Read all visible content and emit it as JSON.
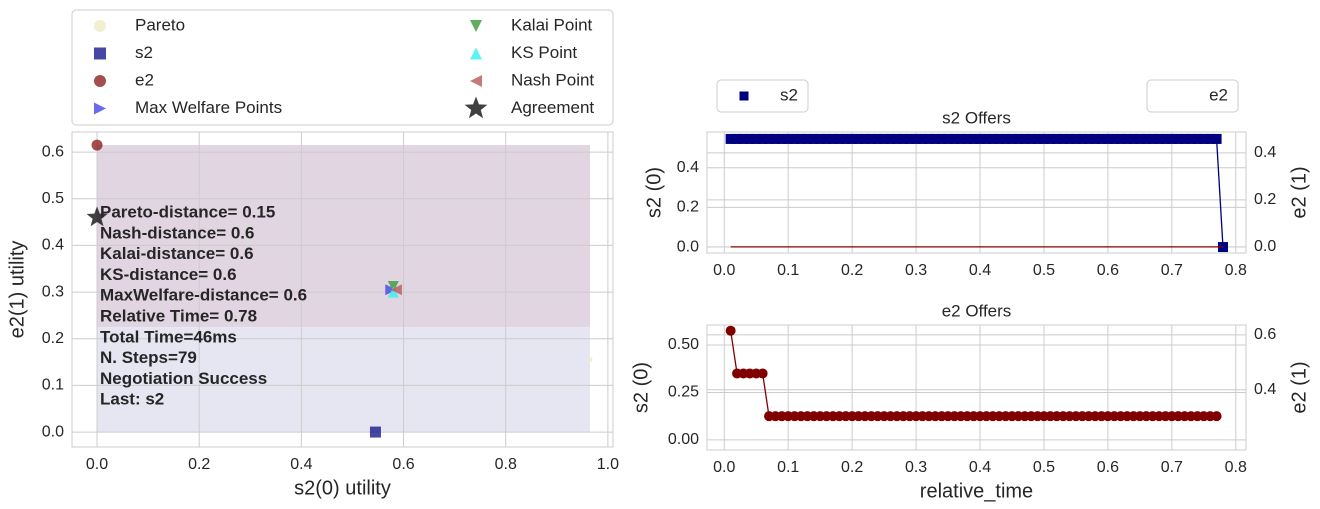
{
  "chart_data": [
    {
      "type": "scatter",
      "xlabel": "s2(0) utility",
      "ylabel": "e2(1) utility",
      "xlim": [
        -0.049,
        1.01
      ],
      "ylim": [
        -0.032,
        0.643
      ],
      "xticks": [
        {
          "value": 0,
          "label": "0.0"
        },
        0.2,
        0.4,
        0.6,
        0.8,
        {
          "value": 1,
          "label": "1.0"
        }
      ],
      "yticks": [
        {
          "value": 0,
          "label": "0.0"
        },
        0.1,
        0.2,
        0.3,
        0.4,
        0.5,
        0.6
      ],
      "grid": true,
      "regions": [
        {
          "x": [
            0,
            0.965
          ],
          "y": [
            0.225,
            0.615
          ],
          "color": "#e1d5e1"
        },
        {
          "x": [
            0,
            0.965
          ],
          "y": [
            0,
            0.225
          ],
          "color": "#e6e6f2"
        }
      ],
      "series": [
        {
          "name": "Pareto",
          "color": "#efeac4",
          "marker": "circle",
          "x": [
            0.965
          ],
          "values": [
            0.155
          ]
        },
        {
          "name": "s2",
          "color": "#1a1a8c",
          "marker": "square",
          "x": [
            0.545
          ],
          "values": [
            0.0
          ]
        },
        {
          "name": "e2",
          "color": "#8b2222",
          "marker": "circle",
          "x": [
            0.0
          ],
          "values": [
            0.615
          ]
        },
        {
          "name": "Max Welfare Points",
          "color": "#4545e6",
          "marker": "tri-right",
          "x": [
            0.575
          ],
          "values": [
            0.305
          ]
        },
        {
          "name": "Kalai Point",
          "color": "#3a9a3a",
          "marker": "tri-down",
          "x": [
            0.58
          ],
          "values": [
            0.312
          ]
        },
        {
          "name": "KS Point",
          "color": "#33f0f0",
          "marker": "tri-up",
          "x": [
            0.58
          ],
          "values": [
            0.3
          ]
        },
        {
          "name": "Nash Point",
          "color": "#b85a5a",
          "marker": "tri-left",
          "x": [
            0.586
          ],
          "values": [
            0.305
          ]
        },
        {
          "name": "Agreement",
          "color": "#111111",
          "marker": "star",
          "x": [
            0.0
          ],
          "values": [
            0.46
          ]
        }
      ],
      "annotation": [
        "Pareto-distance= 0.15",
        "Nash-distance=  0.6",
        "Kalai-distance=  0.6",
        "KS-distance=  0.6",
        "MaxWelfare-distance=  0.6",
        "Relative Time= 0.78",
        "Total Time=46ms",
        "N. Steps=79",
        "Negotiation Success",
        "Last: s2"
      ]
    },
    {
      "type": "line",
      "title": "s2 Offers",
      "ylabel": "s2 (0)",
      "y2label": "e2 (1)",
      "xlim": [
        -0.027,
        0.816
      ],
      "ylim": [
        -0.03,
        0.58
      ],
      "y2lim": [
        -0.026,
        0.489
      ],
      "xticks": [
        {
          "value": 0,
          "label": "0.0"
        },
        0.1,
        0.2,
        0.3,
        0.4,
        0.5,
        0.6,
        0.7,
        0.8
      ],
      "yticks": [
        {
          "value": 0,
          "label": "0.0"
        },
        0.2,
        0.4
      ],
      "y2ticks": [
        {
          "value": 0,
          "label": "0.0"
        },
        0.2,
        0.4
      ],
      "grid": true,
      "series": [
        {
          "name": "s2",
          "color": "#000080",
          "marker": "square",
          "x": [
            0.01,
            0.02,
            0.03,
            0.04,
            0.05,
            0.06,
            0.07,
            0.08,
            0.09,
            0.1,
            0.11,
            0.12,
            0.13,
            0.14,
            0.15,
            0.16,
            0.17,
            0.18,
            0.19,
            0.2,
            0.21,
            0.22,
            0.23,
            0.24,
            0.25,
            0.26,
            0.27,
            0.28,
            0.29,
            0.3,
            0.31,
            0.32,
            0.33,
            0.34,
            0.35,
            0.36,
            0.37,
            0.38,
            0.39,
            0.4,
            0.41,
            0.42,
            0.43,
            0.44,
            0.45,
            0.46,
            0.47,
            0.48,
            0.49,
            0.5,
            0.51,
            0.52,
            0.53,
            0.54,
            0.55,
            0.56,
            0.57,
            0.58,
            0.59,
            0.6,
            0.61,
            0.62,
            0.63,
            0.64,
            0.65,
            0.66,
            0.67,
            0.68,
            0.69,
            0.7,
            0.71,
            0.72,
            0.73,
            0.74,
            0.75,
            0.76,
            0.77,
            0.78
          ],
          "values": [
            0.545,
            0.545,
            0.545,
            0.545,
            0.545,
            0.545,
            0.545,
            0.545,
            0.545,
            0.545,
            0.545,
            0.545,
            0.545,
            0.545,
            0.545,
            0.545,
            0.545,
            0.545,
            0.545,
            0.545,
            0.545,
            0.545,
            0.545,
            0.545,
            0.545,
            0.545,
            0.545,
            0.545,
            0.545,
            0.545,
            0.545,
            0.545,
            0.545,
            0.545,
            0.545,
            0.545,
            0.545,
            0.545,
            0.545,
            0.545,
            0.545,
            0.545,
            0.545,
            0.545,
            0.545,
            0.545,
            0.545,
            0.545,
            0.545,
            0.545,
            0.545,
            0.545,
            0.545,
            0.545,
            0.545,
            0.545,
            0.545,
            0.545,
            0.545,
            0.545,
            0.545,
            0.545,
            0.545,
            0.545,
            0.545,
            0.545,
            0.545,
            0.545,
            0.545,
            0.545,
            0.545,
            0.545,
            0.545,
            0.545,
            0.545,
            0.545,
            0.545,
            0.0
          ]
        },
        {
          "name": "e2",
          "color": "#8b0000",
          "axis": "y2",
          "x": [
            0.01,
            0.78
          ],
          "values": [
            0.0,
            0.0
          ]
        }
      ]
    },
    {
      "type": "line",
      "title": "e2 Offers",
      "xlabel": "relative_time",
      "ylabel": "s2 (0)",
      "y2label": "e2 (1)",
      "xlim": [
        -0.027,
        0.816
      ],
      "ylim": [
        -0.053,
        0.605
      ],
      "y2lim": [
        0.18,
        0.636
      ],
      "xticks": [
        {
          "value": 0,
          "label": "0.0"
        },
        0.1,
        0.2,
        0.3,
        0.4,
        0.5,
        0.6,
        0.7,
        0.8
      ],
      "yticks": [
        {
          "value": 0,
          "label": "0.00"
        },
        0.25,
        {
          "value": 0.5,
          "label": "0.50"
        }
      ],
      "y2ticks": [
        0.4,
        0.6
      ],
      "grid": true,
      "series": [
        {
          "color": "#800000",
          "marker": "circle",
          "x": [
            0.01,
            0.02,
            0.03,
            0.04,
            0.05,
            0.06,
            0.07,
            0.08,
            0.09,
            0.1,
            0.11,
            0.12,
            0.13,
            0.14,
            0.15,
            0.16,
            0.17,
            0.18,
            0.19,
            0.2,
            0.21,
            0.22,
            0.23,
            0.24,
            0.25,
            0.26,
            0.27,
            0.28,
            0.29,
            0.3,
            0.31,
            0.32,
            0.33,
            0.34,
            0.35,
            0.36,
            0.37,
            0.38,
            0.39,
            0.4,
            0.41,
            0.42,
            0.43,
            0.44,
            0.45,
            0.46,
            0.47,
            0.48,
            0.49,
            0.5,
            0.51,
            0.52,
            0.53,
            0.54,
            0.55,
            0.56,
            0.57,
            0.58,
            0.59,
            0.6,
            0.61,
            0.62,
            0.63,
            0.64,
            0.65,
            0.66,
            0.67,
            0.68,
            0.69,
            0.7,
            0.71,
            0.72,
            0.73,
            0.74,
            0.75,
            0.76,
            0.77
          ],
          "values": [
            0.575,
            0.35,
            0.35,
            0.35,
            0.35,
            0.35,
            0.125,
            0.125,
            0.125,
            0.125,
            0.125,
            0.125,
            0.125,
            0.125,
            0.125,
            0.125,
            0.125,
            0.125,
            0.125,
            0.125,
            0.125,
            0.125,
            0.125,
            0.125,
            0.125,
            0.125,
            0.125,
            0.125,
            0.125,
            0.125,
            0.125,
            0.125,
            0.125,
            0.125,
            0.125,
            0.125,
            0.125,
            0.125,
            0.125,
            0.125,
            0.125,
            0.125,
            0.125,
            0.125,
            0.125,
            0.125,
            0.125,
            0.125,
            0.125,
            0.125,
            0.125,
            0.125,
            0.125,
            0.125,
            0.125,
            0.125,
            0.125,
            0.125,
            0.125,
            0.125,
            0.125,
            0.125,
            0.125,
            0.125,
            0.125,
            0.125,
            0.125,
            0.125,
            0.125,
            0.125,
            0.125,
            0.125,
            0.125,
            0.125,
            0.125,
            0.125,
            0.125
          ]
        }
      ]
    }
  ]
}
